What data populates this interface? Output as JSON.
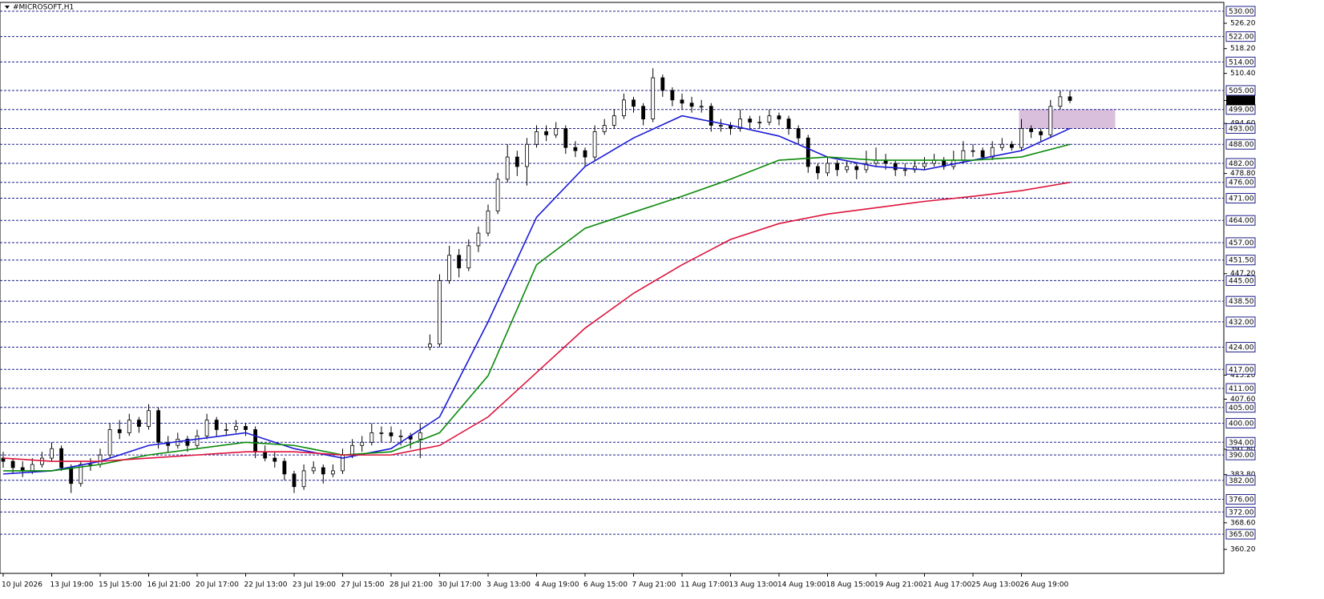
{
  "chart_data": {
    "type": "candlestick",
    "title": "#MICROSOFT,H1",
    "ylim": [
      352.64,
      532.78
    ],
    "yticks": [
      {
        "value": 526.2,
        "label": "526.20"
      },
      {
        "value": 518.2,
        "label": "518.20"
      },
      {
        "value": 510.4,
        "label": "510.40"
      },
      {
        "value": 494.6,
        "label": "494.60"
      },
      {
        "value": 478.8,
        "label": "478.80"
      },
      {
        "value": 447.2,
        "label": "447.20"
      },
      {
        "value": 415.2,
        "label": "415.20"
      },
      {
        "value": 407.6,
        "label": "407.60"
      },
      {
        "value": 391.8,
        "label": "391.80"
      },
      {
        "value": 383.8,
        "label": "383.80"
      },
      {
        "value": 368.6,
        "label": "368.60"
      },
      {
        "value": 360.2,
        "label": "360.20"
      }
    ],
    "levels": [
      {
        "value": 530,
        "label": "530.00"
      },
      {
        "value": 522,
        "label": "522.00"
      },
      {
        "value": 514,
        "label": "514.00"
      },
      {
        "value": 505,
        "label": "505.00"
      },
      {
        "value": 499,
        "label": "499.00"
      },
      {
        "value": 493,
        "label": "493.00"
      },
      {
        "value": 488,
        "label": "488.00"
      },
      {
        "value": 482,
        "label": "482.00"
      },
      {
        "value": 476,
        "label": "476.00"
      },
      {
        "value": 471,
        "label": "471.00"
      },
      {
        "value": 464,
        "label": "464.00"
      },
      {
        "value": 457,
        "label": "457.00"
      },
      {
        "value": 451.5,
        "label": "451.50"
      },
      {
        "value": 445,
        "label": "445.00"
      },
      {
        "value": 438.5,
        "label": "438.50"
      },
      {
        "value": 432,
        "label": "432.00"
      },
      {
        "value": 424,
        "label": "424.00"
      },
      {
        "value": 417,
        "label": "417.00"
      },
      {
        "value": 411,
        "label": "411.00"
      },
      {
        "value": 405,
        "label": "405.00"
      },
      {
        "value": 400,
        "label": "400.00"
      },
      {
        "value": 394,
        "label": "394.00"
      },
      {
        "value": 390,
        "label": "390.00"
      },
      {
        "value": 382,
        "label": "382.00"
      },
      {
        "value": 376,
        "label": "376.00"
      },
      {
        "value": 372,
        "label": "372.00"
      },
      {
        "value": 365,
        "label": "365.00"
      }
    ],
    "last_price": 501.84,
    "zone": {
      "color": "#d9bfdc",
      "values": [
        493,
        499
      ]
    },
    "categories": [
      "10 Jul 2026",
      null,
      null,
      null,
      null,
      "13 Jul 19:00",
      null,
      null,
      null,
      null,
      "15 Jul 15:00",
      null,
      null,
      null,
      null,
      "16 Jul 21:00",
      null,
      null,
      null,
      null,
      "20 Jul 17:00",
      null,
      null,
      null,
      null,
      "22 Jul 13:00",
      null,
      null,
      null,
      null,
      "23 Jul 19:00",
      null,
      null,
      null,
      null,
      "27 Jul 15:00",
      null,
      null,
      null,
      null,
      "28 Jul 21:00",
      null,
      null,
      null,
      null,
      "30 Jul 17:00",
      null,
      null,
      null,
      null,
      "3 Aug 13:00",
      null,
      null,
      null,
      null,
      "4 Aug 19:00",
      null,
      null,
      null,
      null,
      "6 Aug 15:00",
      null,
      null,
      null,
      null,
      "7 Aug 21:00",
      null,
      null,
      null,
      null,
      "11 Aug 17:00",
      null,
      null,
      null,
      null,
      "13 Aug 13:00",
      null,
      null,
      null,
      null,
      "14 Aug 19:00",
      null,
      null,
      null,
      null,
      "18 Aug 15:00",
      null,
      null,
      null,
      null,
      "19 Aug 21:00",
      null,
      null,
      null,
      null,
      "21 Aug 17:00",
      null,
      null,
      null,
      null,
      "25 Aug 13:00",
      null,
      null,
      null,
      null,
      "26 Aug 19:00",
      null,
      null,
      null,
      null,
      null
    ],
    "ohlc": [
      [
        389,
        391,
        386,
        388
      ],
      [
        388,
        389,
        384,
        386
      ],
      [
        386,
        388,
        383,
        385
      ],
      [
        385,
        389,
        384,
        387
      ],
      [
        387,
        391,
        386,
        389
      ],
      [
        389,
        394,
        388,
        392
      ],
      [
        392,
        393,
        385,
        386
      ],
      [
        386,
        387,
        378,
        381
      ],
      [
        381,
        388,
        380,
        387
      ],
      [
        387,
        389,
        385,
        387
      ],
      [
        387,
        392,
        386,
        390
      ],
      [
        390,
        400,
        389,
        398
      ],
      [
        398,
        401,
        395,
        397
      ],
      [
        397,
        403,
        396,
        401
      ],
      [
        401,
        402,
        397,
        399
      ],
      [
        399,
        406,
        398,
        404
      ],
      [
        404,
        405,
        392,
        394
      ],
      [
        394,
        396,
        391,
        393
      ],
      [
        393,
        397,
        392,
        395
      ],
      [
        395,
        396,
        391,
        393
      ],
      [
        393,
        398,
        392,
        396
      ],
      [
        396,
        403,
        395,
        401
      ],
      [
        401,
        402,
        396,
        398
      ],
      [
        398,
        400,
        396,
        398
      ],
      [
        398,
        401,
        397,
        399
      ],
      [
        399,
        400,
        396,
        398
      ],
      [
        398,
        399,
        389,
        391
      ],
      [
        391,
        393,
        388,
        389
      ],
      [
        389,
        391,
        386,
        388
      ],
      [
        388,
        389,
        382,
        384
      ],
      [
        384,
        385,
        378,
        380
      ],
      [
        380,
        387,
        379,
        385
      ],
      [
        385,
        388,
        384,
        386
      ],
      [
        386,
        387,
        381,
        384
      ],
      [
        384,
        387,
        383,
        385
      ],
      [
        385,
        392,
        384,
        390
      ],
      [
        390,
        395,
        389,
        393
      ],
      [
        393,
        396,
        391,
        394
      ],
      [
        394,
        400,
        393,
        397
      ],
      [
        397,
        399,
        394,
        397
      ],
      [
        397,
        399,
        394,
        396
      ],
      [
        396,
        398,
        393,
        396
      ],
      [
        396,
        397,
        392,
        395
      ],
      [
        395,
        400,
        389,
        397
      ],
      [
        424,
        428,
        423,
        425
      ],
      [
        425,
        447,
        424,
        445
      ],
      [
        445,
        456,
        444,
        453
      ],
      [
        453,
        455,
        446,
        449
      ],
      [
        449,
        458,
        448,
        456
      ],
      [
        456,
        462,
        454,
        460
      ],
      [
        460,
        469,
        459,
        467
      ],
      [
        467,
        479,
        466,
        477
      ],
      [
        477,
        488,
        476,
        484
      ],
      [
        484,
        486,
        478,
        481
      ],
      [
        481,
        490,
        475,
        488
      ],
      [
        488,
        494,
        487,
        492
      ],
      [
        492,
        494,
        489,
        491
      ],
      [
        491,
        495,
        490,
        493
      ],
      [
        493,
        494,
        485,
        487
      ],
      [
        487,
        489,
        484,
        486
      ],
      [
        486,
        487,
        481,
        484
      ],
      [
        484,
        494,
        483,
        492
      ],
      [
        492,
        496,
        491,
        494
      ],
      [
        494,
        499,
        493,
        497
      ],
      [
        497,
        504,
        496,
        502
      ],
      [
        502,
        503,
        498,
        500
      ],
      [
        500,
        501,
        494,
        496
      ],
      [
        496,
        512,
        495,
        509
      ],
      [
        509,
        510,
        503,
        505
      ],
      [
        505,
        506,
        500,
        502
      ],
      [
        502,
        504,
        499,
        501
      ],
      [
        501,
        503,
        498,
        500
      ],
      [
        500,
        502,
        498,
        500
      ],
      [
        500,
        501,
        492,
        494
      ],
      [
        494,
        496,
        492,
        494
      ],
      [
        494,
        495,
        491,
        493
      ],
      [
        493,
        499,
        492,
        496
      ],
      [
        496,
        497,
        493,
        495
      ],
      [
        495,
        497,
        493,
        495
      ],
      [
        495,
        499,
        494,
        497
      ],
      [
        497,
        498,
        494,
        496
      ],
      [
        496,
        497,
        491,
        493
      ],
      [
        493,
        494,
        488,
        490
      ],
      [
        490,
        491,
        479,
        481
      ],
      [
        481,
        482,
        477,
        479
      ],
      [
        479,
        484,
        478,
        482
      ],
      [
        482,
        483,
        478,
        480
      ],
      [
        480,
        483,
        479,
        481
      ],
      [
        481,
        482,
        477,
        480
      ],
      [
        480,
        486,
        479,
        482
      ],
      [
        482,
        487,
        481,
        483
      ],
      [
        483,
        485,
        480,
        482
      ],
      [
        482,
        483,
        478,
        480
      ],
      [
        480,
        482,
        478,
        480
      ],
      [
        480,
        483,
        479,
        481
      ],
      [
        481,
        484,
        480,
        482
      ],
      [
        482,
        485,
        481,
        483
      ],
      [
        483,
        484,
        480,
        481
      ],
      [
        481,
        486,
        480,
        483
      ],
      [
        483,
        489,
        482,
        486
      ],
      [
        486,
        488,
        484,
        486
      ],
      [
        486,
        487,
        483,
        484
      ],
      [
        484,
        489,
        483,
        487
      ],
      [
        487,
        490,
        486,
        488
      ],
      [
        488,
        489,
        486,
        487
      ],
      [
        487,
        496,
        486,
        493
      ],
      [
        493,
        494,
        490,
        492
      ],
      [
        492,
        493,
        489,
        491
      ],
      [
        491,
        502,
        490,
        500
      ],
      [
        500,
        505,
        499,
        503
      ],
      [
        503,
        505,
        501,
        501.84
      ]
    ],
    "series": [
      {
        "color": "#1a1ad6",
        "x": [
          0,
          5,
          10,
          15,
          20,
          25,
          30,
          35,
          40,
          45,
          50,
          55,
          60,
          65,
          70,
          75,
          80,
          85,
          90,
          95,
          100,
          105,
          110
        ],
        "values": [
          384,
          385,
          388,
          393,
          395,
          397,
          392,
          389,
          392,
          402,
          432,
          465,
          481,
          490,
          497,
          494,
          490.6,
          484,
          481,
          480,
          483,
          486,
          493
        ]
      },
      {
        "color": "#0a8a0a",
        "x": [
          0,
          5,
          10,
          15,
          20,
          25,
          30,
          35,
          40,
          45,
          50,
          55,
          60,
          65,
          70,
          75,
          80,
          85,
          90,
          95,
          100,
          105,
          110
        ],
        "values": [
          385,
          385,
          387,
          390,
          392,
          394,
          393,
          390,
          391,
          397,
          415,
          450,
          461.5,
          466.6,
          471.6,
          477,
          483,
          484,
          483,
          483,
          483,
          484,
          488
        ]
      },
      {
        "color": "#dc143c",
        "x": [
          0,
          5,
          10,
          15,
          20,
          25,
          30,
          35,
          40,
          45,
          50,
          55,
          60,
          65,
          70,
          75,
          80,
          85,
          90,
          95,
          100,
          105,
          110
        ],
        "values": [
          389,
          388,
          388,
          389,
          390,
          391,
          391,
          390,
          390,
          393,
          402,
          416,
          430,
          441,
          450,
          458,
          463,
          466,
          468,
          470,
          471.6,
          473.4,
          476
        ]
      }
    ]
  }
}
